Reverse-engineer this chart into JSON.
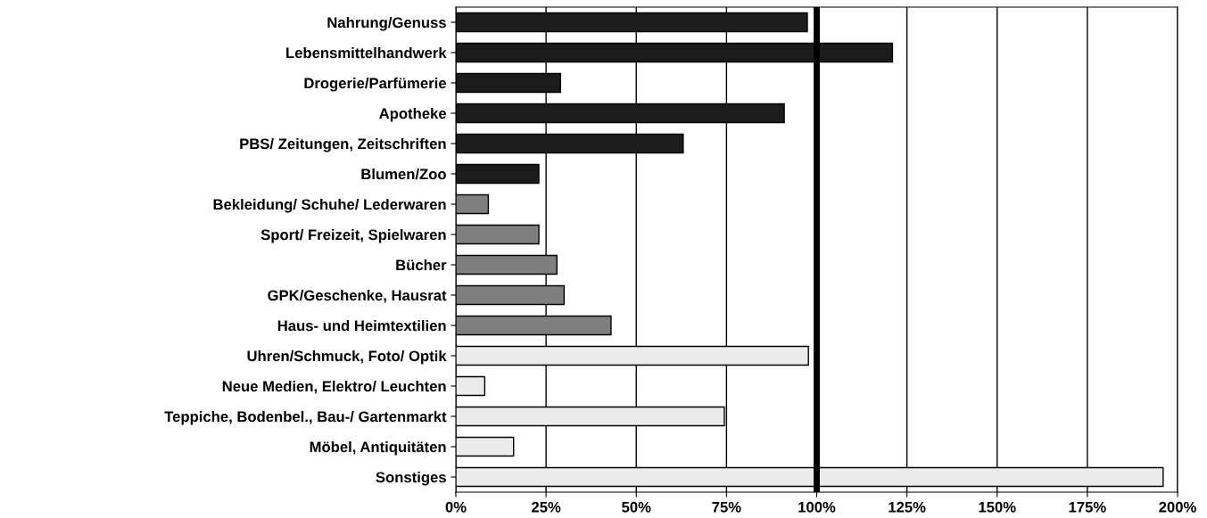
{
  "chart_data": {
    "type": "bar",
    "orientation": "horizontal",
    "categories": [
      "Nahrung/Genuss",
      "Lebensmittelhandwerk",
      "Drogerie/Parfümerie",
      "Apotheke",
      "PBS/ Zeitungen, Zeitschriften",
      "Blumen/Zoo",
      "Bekleidung/ Schuhe/ Lederwaren",
      "Sport/ Freizeit, Spielwaren",
      "Bücher",
      "GPK/Geschenke, Hausrat",
      "Haus- und Heimtextilien",
      "Uhren/Schmuck, Foto/ Optik",
      "Neue Medien, Elektro/ Leuchten",
      "Teppiche, Bodenbel., Bau-/ Gartenmarkt",
      "Möbel, Antiquitäten",
      "Sonstiges"
    ],
    "values": [
      97.4,
      121,
      29,
      91,
      63,
      23,
      9,
      23,
      28,
      30,
      43,
      97.7,
      8,
      74.4,
      16,
      196
    ],
    "colors": [
      "#1c1c1c",
      "#1c1c1c",
      "#1c1c1c",
      "#1c1c1c",
      "#1c1c1c",
      "#1c1c1c",
      "#7f7f7f",
      "#7f7f7f",
      "#7f7f7f",
      "#7f7f7f",
      "#7f7f7f",
      "#ebebeb",
      "#ebebeb",
      "#ebebeb",
      "#ebebeb",
      "#ebebeb"
    ],
    "xlim": [
      0,
      200
    ],
    "xticks": [
      {
        "value": 0,
        "label": "0%"
      },
      {
        "value": 25,
        "label": "25%"
      },
      {
        "value": 50,
        "label": "50%"
      },
      {
        "value": 75,
        "label": "75%"
      },
      {
        "value": 100,
        "label": "100%"
      },
      {
        "value": 125,
        "label": "125%"
      },
      {
        "value": 150,
        "label": "150%"
      },
      {
        "value": 175,
        "label": "175%"
      },
      {
        "value": 200,
        "label": "200%"
      }
    ],
    "grid": "x",
    "ref_lines": [
      {
        "axis": "x",
        "value": 100,
        "color": "#000000"
      }
    ]
  }
}
